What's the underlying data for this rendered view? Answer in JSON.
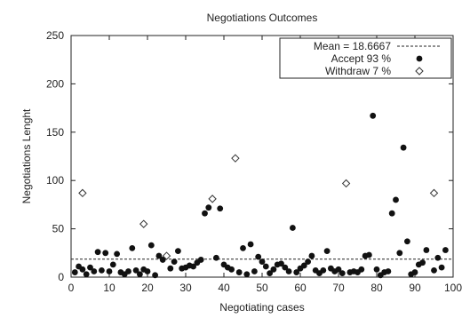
{
  "chart_data": {
    "type": "scatter",
    "title": "Negotiations Outcomes",
    "xlabel": "Negotiating cases",
    "ylabel": "Negotiations Lenght",
    "xlim": [
      0,
      100
    ],
    "ylim": [
      0,
      250
    ],
    "xticks": [
      0,
      10,
      20,
      30,
      40,
      50,
      60,
      70,
      80,
      90,
      100
    ],
    "yticks": [
      0,
      50,
      100,
      150,
      200,
      250
    ],
    "xtick_labels": [
      "0",
      "10",
      "20",
      "30",
      "40",
      "50",
      "60",
      "70",
      "80",
      "90",
      "100"
    ],
    "ytick_labels": [
      "0",
      "50",
      "100",
      "150",
      "200",
      "250"
    ],
    "grid": false,
    "legend_position": "top-right",
    "mean_line": {
      "label": "Mean = 18.6667",
      "value": 18.6667
    },
    "series": [
      {
        "name": "Accept 93 %",
        "marker": "filled-circle",
        "color": "#111111",
        "x": [
          1,
          2,
          3,
          4,
          5,
          6,
          7,
          8,
          9,
          10,
          11,
          12,
          13,
          14,
          15,
          16,
          17,
          18,
          19,
          20,
          21,
          22,
          23,
          24,
          26,
          27,
          28,
          29,
          30,
          31,
          32,
          33,
          34,
          35,
          36,
          38,
          39,
          40,
          41,
          42,
          44,
          45,
          46,
          47,
          48,
          49,
          50,
          51,
          52,
          53,
          54,
          55,
          56,
          57,
          58,
          59,
          60,
          61,
          62,
          63,
          64,
          65,
          66,
          67,
          68,
          69,
          70,
          71,
          73,
          74,
          75,
          76,
          77,
          78,
          79,
          80,
          81,
          82,
          83,
          84,
          85,
          86,
          87,
          88,
          89,
          90,
          91,
          92,
          93,
          95,
          96,
          97,
          98
        ],
        "y": [
          5,
          11,
          8,
          3,
          10,
          6,
          26,
          7,
          25,
          6,
          13,
          24,
          5,
          3,
          6,
          30,
          7,
          3,
          8,
          6,
          33,
          2,
          22,
          18,
          9,
          16,
          27,
          9,
          10,
          12,
          11,
          15,
          18,
          66,
          72,
          20,
          71,
          13,
          10,
          8,
          5,
          30,
          3,
          34,
          6,
          21,
          16,
          11,
          4,
          8,
          13,
          14,
          10,
          6,
          51,
          5,
          9,
          12,
          16,
          22,
          7,
          4,
          7,
          27,
          9,
          6,
          8,
          4,
          5,
          6,
          5,
          8,
          22,
          23,
          167,
          8,
          2,
          5,
          6,
          66,
          80,
          25,
          134,
          37,
          3,
          5,
          13,
          15,
          28,
          7,
          20,
          10,
          28
        ]
      },
      {
        "name": "Withdraw 7 %",
        "marker": "open-diamond",
        "color": "#333333",
        "x": [
          3,
          19,
          25,
          37,
          43,
          72,
          95
        ],
        "y": [
          87,
          55,
          22,
          81,
          123,
          97,
          87
        ]
      }
    ]
  }
}
